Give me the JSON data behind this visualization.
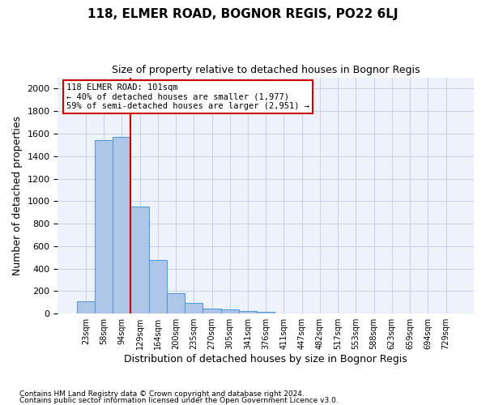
{
  "title": "118, ELMER ROAD, BOGNOR REGIS, PO22 6LJ",
  "subtitle": "Size of property relative to detached houses in Bognor Regis",
  "xlabel": "Distribution of detached houses by size in Bognor Regis",
  "ylabel": "Number of detached properties",
  "footnote1": "Contains HM Land Registry data © Crown copyright and database right 2024.",
  "footnote2": "Contains public sector information licensed under the Open Government Licence v3.0.",
  "bar_values": [
    110,
    1540,
    1570,
    950,
    480,
    185,
    95,
    48,
    35,
    22,
    15,
    0,
    0,
    0,
    0,
    0,
    0,
    0,
    0,
    0,
    0
  ],
  "x_labels": [
    "23sqm",
    "58sqm",
    "94sqm",
    "129sqm",
    "164sqm",
    "200sqm",
    "235sqm",
    "270sqm",
    "305sqm",
    "341sqm",
    "376sqm",
    "411sqm",
    "447sqm",
    "482sqm",
    "517sqm",
    "553sqm",
    "588sqm",
    "623sqm",
    "659sqm",
    "694sqm",
    "729sqm"
  ],
  "bar_color": "#aec6e8",
  "bar_edge_color": "#5b9bd5",
  "ylim": [
    0,
    2100
  ],
  "yticks": [
    0,
    200,
    400,
    600,
    800,
    1000,
    1200,
    1400,
    1600,
    1800,
    2000
  ],
  "red_line_x": 2.5,
  "annotation_title": "118 ELMER ROAD: 101sqm",
  "annotation_line1": "← 40% of detached houses are smaller (1,977)",
  "annotation_line2": "59% of semi-detached houses are larger (2,951) →",
  "annotation_color": "#cc0000",
  "bg_color": "#eef2fb",
  "grid_color": "#c8d0e8"
}
